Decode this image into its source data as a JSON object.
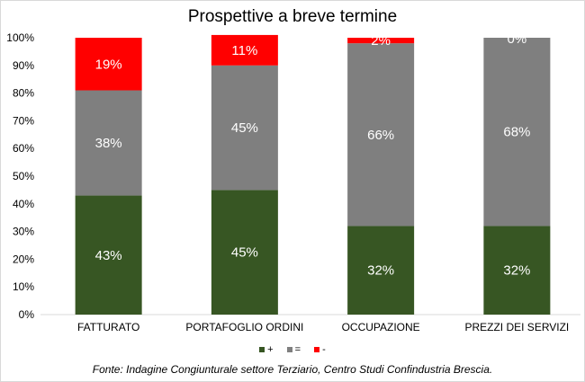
{
  "chart_data": {
    "type": "bar",
    "stacked": true,
    "title": "Prospettive a breve termine",
    "categories": [
      "FATTURATO",
      "PORTAFOGLIO ORDINI",
      "OCCUPAZIONE",
      "PREZZI DEI SERVIZI"
    ],
    "ylim": [
      0,
      100
    ],
    "yticks": [
      "0%",
      "10%",
      "20%",
      "30%",
      "40%",
      "50%",
      "60%",
      "70%",
      "80%",
      "90%",
      "100%"
    ],
    "series": [
      {
        "name": "+",
        "color": "#375623",
        "values": [
          43,
          45,
          32,
          32
        ],
        "labels": [
          "43%",
          "45%",
          "32%",
          "32%"
        ]
      },
      {
        "name": "=",
        "color": "#7f7f7f",
        "values": [
          38,
          45,
          66,
          68
        ],
        "labels": [
          "38%",
          "45%",
          "66%",
          "68%"
        ]
      },
      {
        "name": "-",
        "color": "#ff0000",
        "values": [
          19,
          11,
          2,
          0
        ],
        "labels": [
          "19%",
          "11%",
          "2%",
          "0%"
        ]
      }
    ],
    "legend": "bottom",
    "grid": false
  },
  "source": "Fonte: Indagine Congiunturale settore Terziario, Centro Studi Confindustria Brescia."
}
